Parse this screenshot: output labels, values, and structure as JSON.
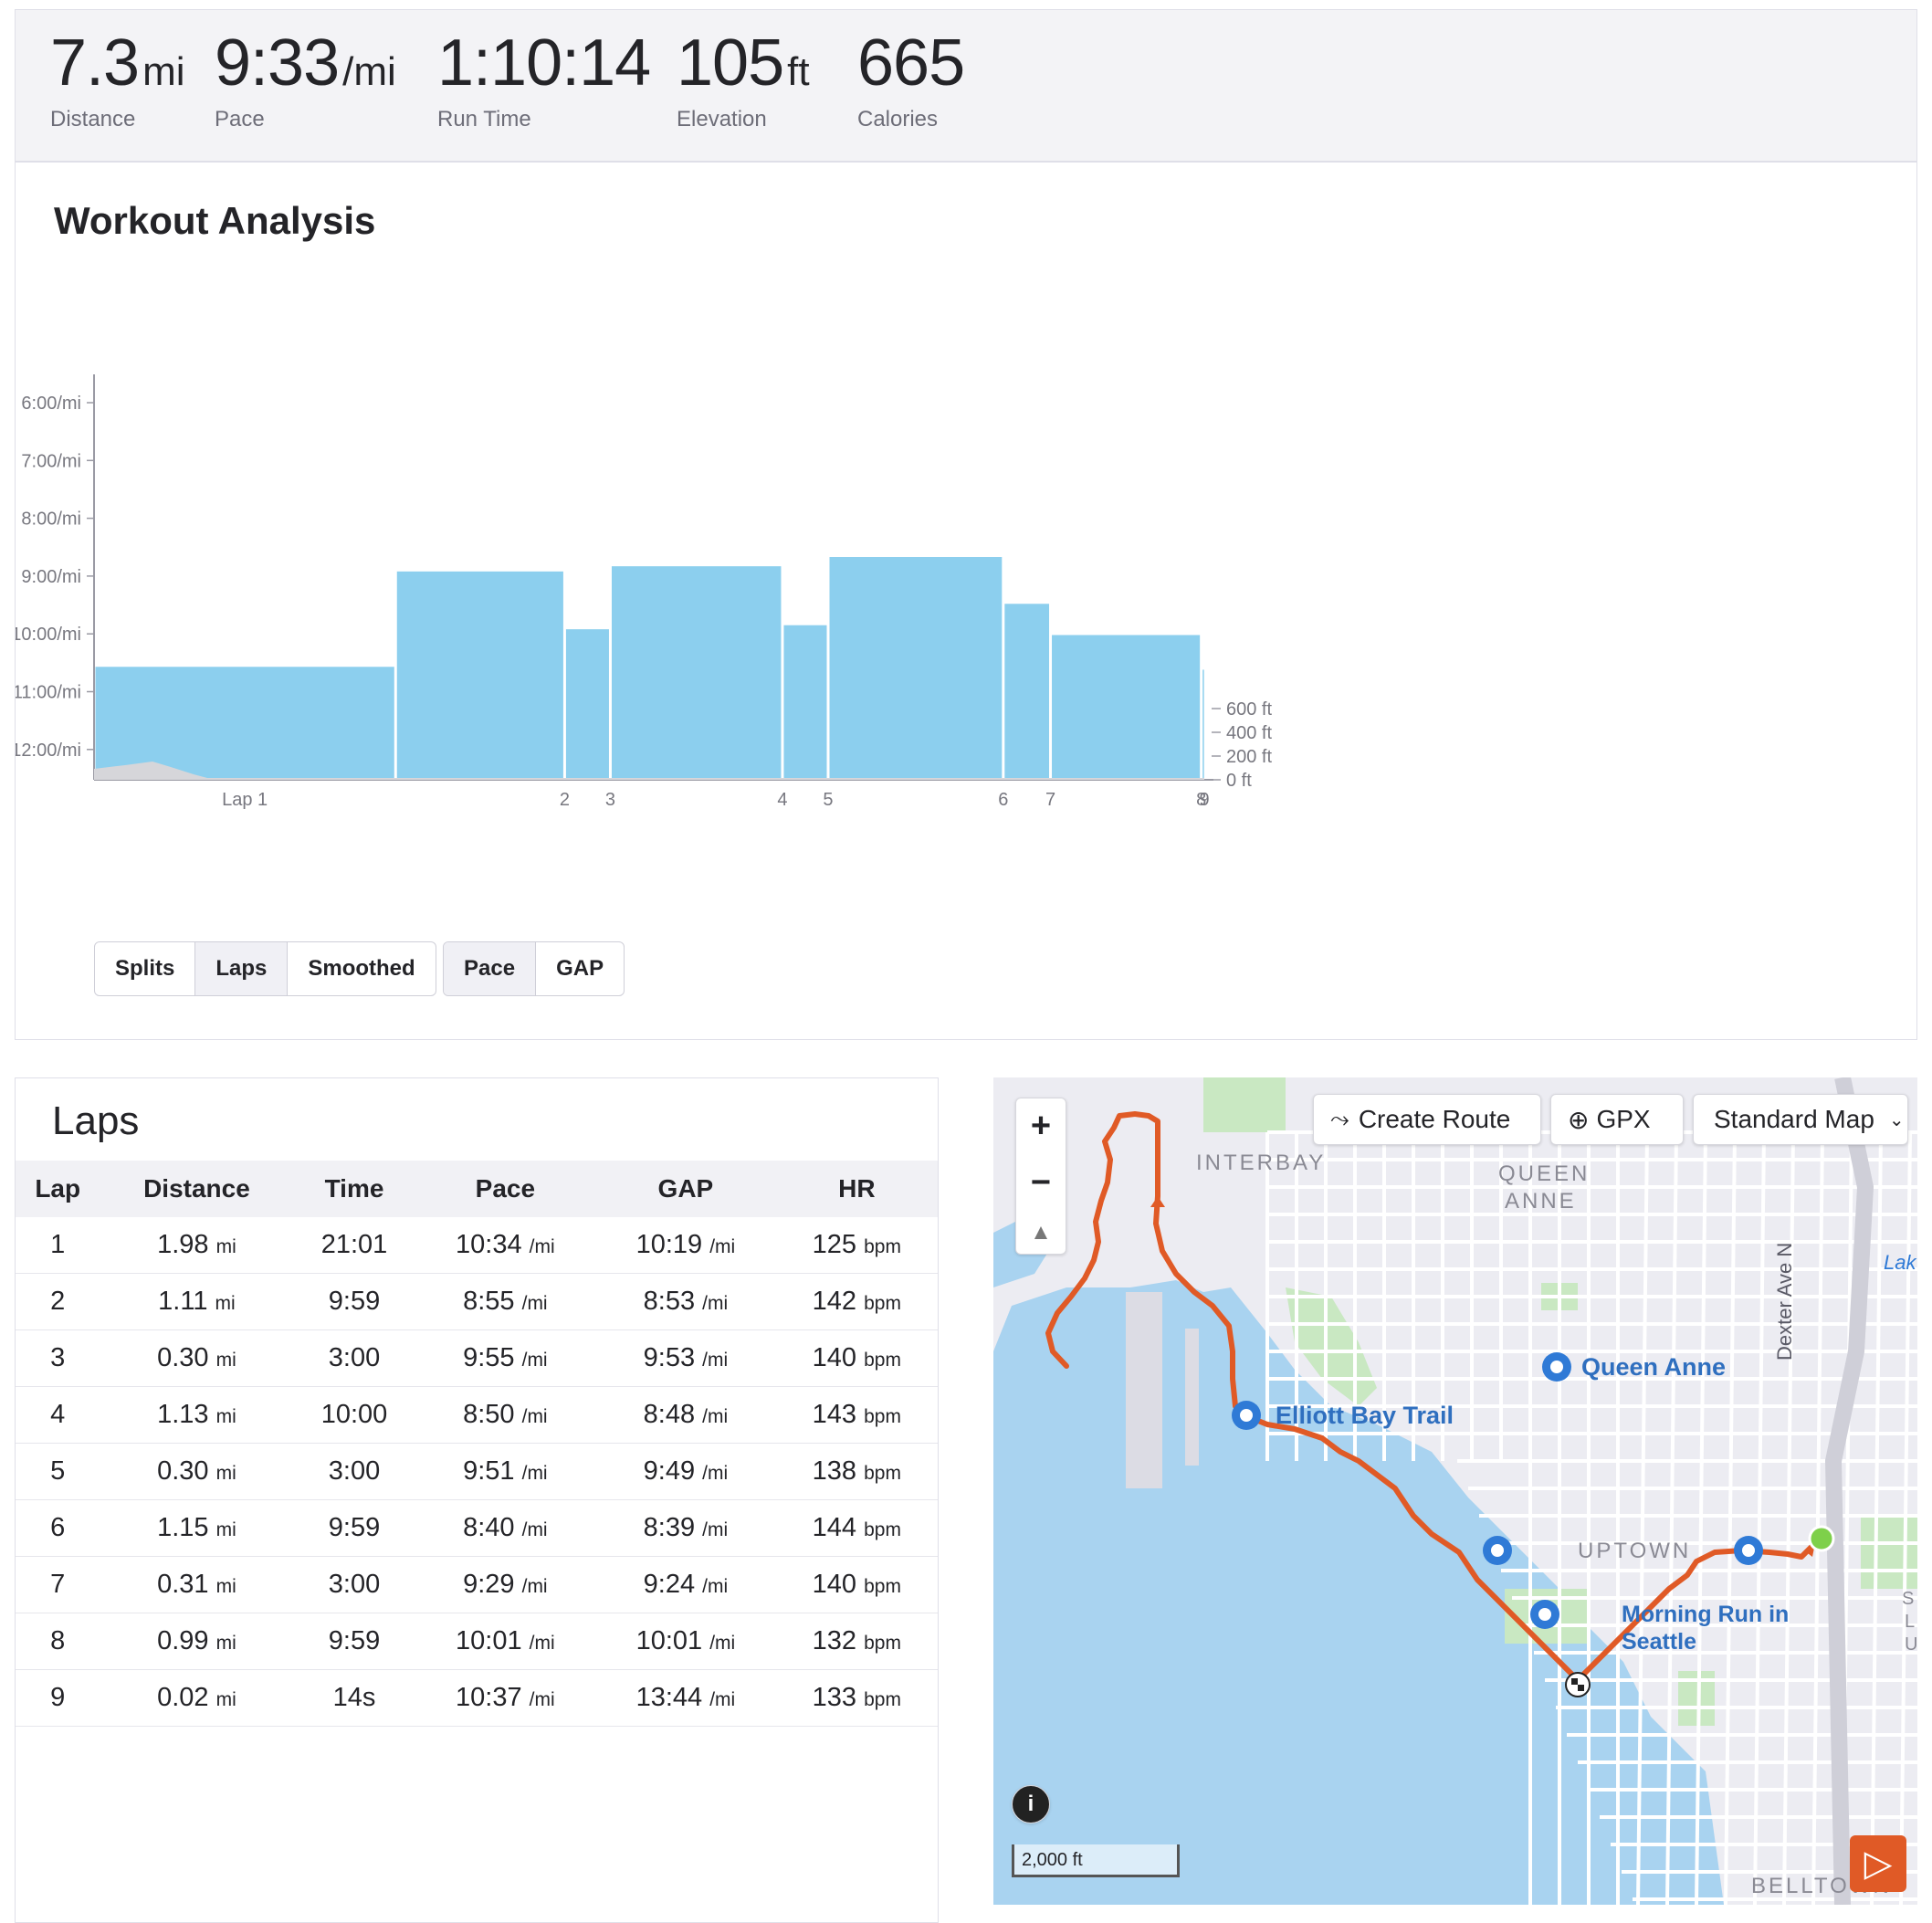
{
  "stats": [
    {
      "value": "7.3",
      "unit": "mi",
      "label": "Distance"
    },
    {
      "value": "9:33",
      "unit": "/mi",
      "label": "Pace"
    },
    {
      "value": "1:10:14",
      "unit": "",
      "label": "Run Time"
    },
    {
      "value": "105",
      "unit": "ft",
      "label": "Elevation"
    },
    {
      "value": "665",
      "unit": "",
      "label": "Calories"
    }
  ],
  "analysis": {
    "title": "Workout Analysis",
    "view_buttons": [
      "Splits",
      "Laps",
      "Smoothed"
    ],
    "active_view": "Laps",
    "metric_buttons": [
      "Pace",
      "GAP"
    ],
    "active_metric": "Pace"
  },
  "chart_data": {
    "type": "bar",
    "title": "",
    "xlabel": "",
    "ylabel": "",
    "y_ticks": [
      "6:00/mi",
      "7:00/mi",
      "8:00/mi",
      "9:00/mi",
      "10:00/mi",
      "11:00/mi",
      "12:00/mi"
    ],
    "y2_ticks": [
      "600 ft",
      "400 ft",
      "200 ft",
      "0 ft"
    ],
    "x_ticks": [
      "Lap 1",
      "2",
      "3",
      "4",
      "5",
      "6",
      "7",
      "8",
      "9"
    ],
    "bar_color": "#8ccfee",
    "laps": [
      {
        "lap": 1,
        "distance_mi": 1.98,
        "pace_min_per_mi": 10.57
      },
      {
        "lap": 2,
        "distance_mi": 1.11,
        "pace_min_per_mi": 8.92
      },
      {
        "lap": 3,
        "distance_mi": 0.3,
        "pace_min_per_mi": 9.92
      },
      {
        "lap": 4,
        "distance_mi": 1.13,
        "pace_min_per_mi": 8.83
      },
      {
        "lap": 5,
        "distance_mi": 0.3,
        "pace_min_per_mi": 9.85
      },
      {
        "lap": 6,
        "distance_mi": 1.15,
        "pace_min_per_mi": 8.67
      },
      {
        "lap": 7,
        "distance_mi": 0.31,
        "pace_min_per_mi": 9.48
      },
      {
        "lap": 8,
        "distance_mi": 0.99,
        "pace_min_per_mi": 10.02
      },
      {
        "lap": 9,
        "distance_mi": 0.02,
        "pace_min_per_mi": 10.62
      }
    ],
    "pace_axis_min_per_mi": [
      6,
      12
    ],
    "elevation_axis_ft": [
      0,
      600
    ]
  },
  "laps_table": {
    "title": "Laps",
    "columns": [
      "Lap",
      "Distance",
      "Time",
      "Pace",
      "GAP",
      "HR"
    ],
    "rows": [
      {
        "lap": "1",
        "distance": "1.98",
        "time": "21:01",
        "pace": "10:34",
        "gap": "10:19",
        "hr": "125"
      },
      {
        "lap": "2",
        "distance": "1.11",
        "time": "9:59",
        "pace": "8:55",
        "gap": "8:53",
        "hr": "142"
      },
      {
        "lap": "3",
        "distance": "0.30",
        "time": "3:00",
        "pace": "9:55",
        "gap": "9:53",
        "hr": "140"
      },
      {
        "lap": "4",
        "distance": "1.13",
        "time": "10:00",
        "pace": "8:50",
        "gap": "8:48",
        "hr": "143"
      },
      {
        "lap": "5",
        "distance": "0.30",
        "time": "3:00",
        "pace": "9:51",
        "gap": "9:49",
        "hr": "138"
      },
      {
        "lap": "6",
        "distance": "1.15",
        "time": "9:59",
        "pace": "8:40",
        "gap": "8:39",
        "hr": "144"
      },
      {
        "lap": "7",
        "distance": "0.31",
        "time": "3:00",
        "pace": "9:29",
        "gap": "9:24",
        "hr": "140"
      },
      {
        "lap": "8",
        "distance": "0.99",
        "time": "9:59",
        "pace": "10:01",
        "gap": "10:01",
        "hr": "132"
      },
      {
        "lap": "9",
        "distance": "0.02",
        "time": "14s",
        "pace": "10:37",
        "gap": "13:44",
        "hr": "133"
      }
    ],
    "units": {
      "distance": "mi",
      "pace": "/mi",
      "gap": "/mi",
      "hr": "bpm"
    }
  },
  "map": {
    "create_route": "Create Route",
    "gpx": "GPX",
    "map_style": "Standard Map",
    "labels": {
      "interbay": "INTERBAY",
      "queen": "QUEEN",
      "anne": "ANNE",
      "queen_anne_poi": "Queen Anne",
      "elliott_poi": "Elliott Bay Trail",
      "uptown": "UPTOWN",
      "morning1": "Morning Run in",
      "morning2": "Seattle",
      "dexter": "Dexter Ave N",
      "belltown": "BELLTOWN",
      "lake": "Lak",
      "s1": "S",
      "s2": "L",
      "s3": "U"
    },
    "scale": "2,000 ft",
    "route_color": "#e05a26",
    "water_color": "#a9d3f0"
  }
}
